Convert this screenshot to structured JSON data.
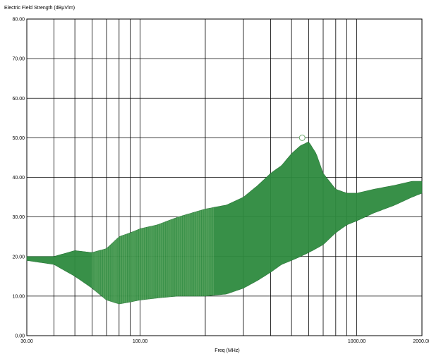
{
  "chart_data": {
    "type": "area",
    "title": "",
    "ylabel": "Electric Field Strength (dBµV/m)",
    "xlabel": "Freq (MHz)",
    "xscale": "log",
    "xlim": [
      30,
      2000
    ],
    "ylim": [
      0,
      80
    ],
    "grid": true,
    "y_ticks": [
      0,
      10,
      20,
      30,
      40,
      50,
      60,
      70,
      80
    ],
    "y_tick_labels": [
      "0.00",
      "10.00",
      "20.00",
      "30.00",
      "40.00",
      "50.00",
      "60.00",
      "70.00",
      "80.00"
    ],
    "x_ticks": [
      30,
      100,
      1000,
      2000
    ],
    "x_tick_labels": [
      "30.00",
      "100.00",
      "1000.00",
      "2000.00"
    ],
    "x_gridlines": [
      40,
      50,
      60,
      70,
      80,
      90,
      100,
      200,
      300,
      400,
      500,
      600,
      700,
      800,
      900,
      1000
    ],
    "series": [
      {
        "name": "",
        "color": "#2e8b3f",
        "x": [
          30,
          40,
          50,
          60,
          70,
          80,
          90,
          100,
          120,
          150,
          200,
          250,
          300,
          350,
          400,
          450,
          500,
          550,
          600,
          650,
          700,
          800,
          900,
          1000,
          1200,
          1500,
          1800,
          2000
        ],
        "upper": [
          20,
          20,
          21.5,
          21,
          22,
          25,
          26,
          27,
          28,
          30,
          32,
          33,
          35,
          38,
          41,
          43,
          46,
          48,
          49,
          46,
          41,
          37,
          36,
          36,
          37,
          38,
          39,
          39
        ],
        "lower": [
          19,
          18,
          15,
          12,
          9,
          8,
          8.5,
          9,
          9.5,
          10,
          10,
          10.5,
          12,
          14,
          16,
          18,
          19,
          20,
          21,
          22,
          23,
          26,
          28,
          29,
          31,
          33,
          35,
          36
        ]
      }
    ],
    "marker": {
      "x": 560,
      "y": 50
    }
  }
}
